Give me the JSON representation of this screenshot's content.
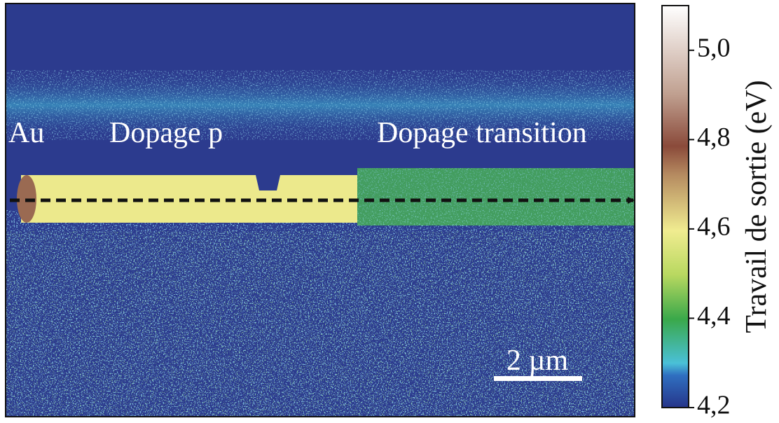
{
  "map": {
    "labels": [
      "Au",
      "Dopage p",
      "Dopage transition"
    ],
    "scale_bar": "2 µm"
  },
  "colorbar": {
    "label": "Travail de sortie (eV)",
    "lim": [
      4.2,
      5.1
    ],
    "ticks": [
      {
        "value": 4.2,
        "label": "4,2"
      },
      {
        "value": 4.4,
        "label": "4,4"
      },
      {
        "value": 4.6,
        "label": "4,6"
      },
      {
        "value": 4.8,
        "label": "4,8"
      },
      {
        "value": 5.0,
        "label": "5,0"
      }
    ]
  }
}
